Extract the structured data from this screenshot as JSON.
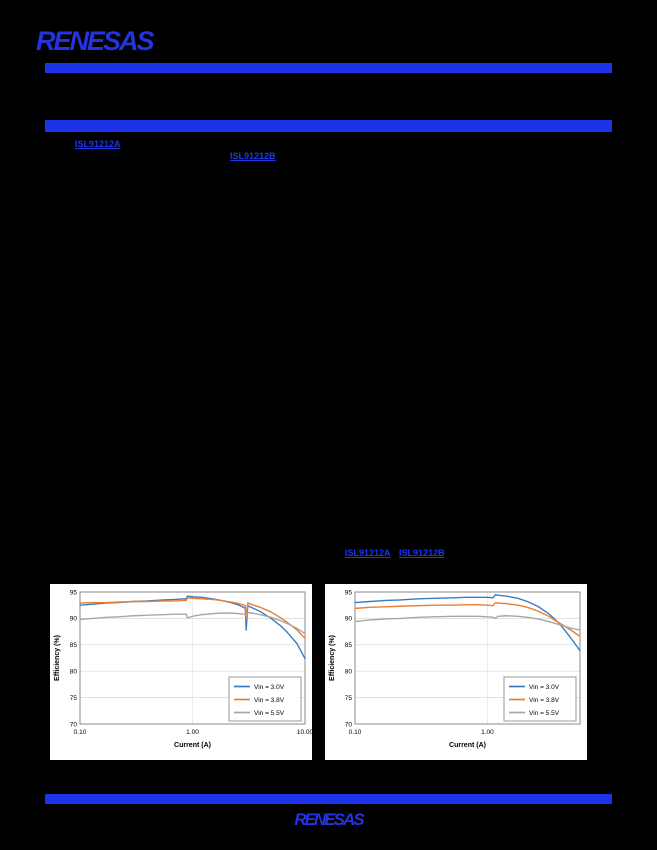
{
  "page": {
    "accent_blue": "#1D33E8",
    "background": "#000000"
  },
  "header": {
    "logo_text": "RENESAS"
  },
  "footer": {
    "logo_text": "RENESAS"
  },
  "links": {
    "top_first": "ISL91212A",
    "top_second": "ISL91212B",
    "mid_first": "ISL91212A",
    "mid_second": "ISL91212B"
  },
  "chart_data": [
    {
      "type": "line",
      "title": "",
      "xlabel": "Current (A)",
      "ylabel": "Efficiency (%)",
      "xscale": "log",
      "xlim": [
        0.1,
        10
      ],
      "ylim": [
        70,
        95
      ],
      "yticks": [
        70,
        75,
        80,
        85,
        90,
        95
      ],
      "xtick_values": [
        0.1,
        1,
        10
      ],
      "xtick_labels": [
        "0.10",
        "1.00",
        "10.00"
      ],
      "grid": true,
      "legend_position": "inside-bottom-right",
      "colors": [
        "#3A7CC4",
        "#ED7D31",
        "#A6A6A6"
      ],
      "x": [
        0.1,
        0.13,
        0.17,
        0.22,
        0.3,
        0.4,
        0.55,
        0.7,
        0.85,
        0.88,
        0.9,
        1.0,
        1.2,
        1.5,
        1.8,
        2.2,
        2.6,
        2.9,
        2.95,
        3.0,
        3.1,
        3.4,
        4.0,
        5.0,
        6.0,
        7.0,
        8.5,
        10.0
      ],
      "series": [
        {
          "name": "Vin = 3.0V",
          "values": [
            92.5,
            92.7,
            92.9,
            93.0,
            93.2,
            93.3,
            93.5,
            93.6,
            93.7,
            93.7,
            94.2,
            94.1,
            94.0,
            93.7,
            93.4,
            93.0,
            92.5,
            92.0,
            91.8,
            87.8,
            92.4,
            92.0,
            91.3,
            90.0,
            88.7,
            87.3,
            85.2,
            82.4
          ]
        },
        {
          "name": "Vin = 3.8V",
          "values": [
            92.9,
            93.0,
            93.0,
            93.1,
            93.2,
            93.2,
            93.3,
            93.3,
            93.4,
            93.4,
            93.9,
            93.8,
            93.7,
            93.6,
            93.4,
            93.1,
            92.8,
            92.5,
            92.4,
            89.9,
            92.9,
            92.6,
            92.1,
            91.2,
            90.2,
            89.2,
            87.8,
            86.2
          ]
        },
        {
          "name": "Vin = 5.5V",
          "values": [
            89.8,
            90.0,
            90.2,
            90.3,
            90.5,
            90.6,
            90.7,
            90.8,
            90.8,
            90.8,
            90.1,
            90.4,
            90.7,
            90.9,
            91.0,
            91.0,
            90.9,
            90.8,
            90.8,
            90.5,
            91.1,
            91.0,
            90.7,
            90.2,
            89.6,
            89.0,
            88.1,
            87.1
          ]
        }
      ]
    },
    {
      "type": "line",
      "title": "",
      "xlabel": "Current (A)",
      "ylabel": "Efficiency (%)",
      "xscale": "log",
      "xlim": [
        0.1,
        5
      ],
      "ylim": [
        70,
        95
      ],
      "yticks": [
        70,
        75,
        80,
        85,
        90,
        95
      ],
      "xtick_values": [
        0.1,
        1
      ],
      "xtick_labels": [
        "0.10",
        "1.00"
      ],
      "grid": true,
      "legend_position": "inside-bottom-right",
      "colors": [
        "#3A7CC4",
        "#ED7D31",
        "#A6A6A6"
      ],
      "x": [
        0.1,
        0.13,
        0.17,
        0.22,
        0.3,
        0.4,
        0.55,
        0.7,
        0.85,
        1.0,
        1.1,
        1.15,
        1.2,
        1.4,
        1.7,
        2.0,
        2.4,
        2.9,
        3.5,
        4.2,
        5.0
      ],
      "series": [
        {
          "name": "Vin = 3.0V",
          "values": [
            93.0,
            93.2,
            93.4,
            93.5,
            93.7,
            93.8,
            93.9,
            94.0,
            94.0,
            94.0,
            93.9,
            94.5,
            94.4,
            94.2,
            93.8,
            93.2,
            92.3,
            90.9,
            89.0,
            86.5,
            83.9
          ]
        },
        {
          "name": "Vin = 3.8V",
          "values": [
            91.9,
            92.1,
            92.2,
            92.3,
            92.4,
            92.5,
            92.5,
            92.6,
            92.6,
            92.5,
            92.4,
            93.0,
            92.9,
            92.8,
            92.5,
            92.1,
            91.4,
            90.4,
            89.1,
            87.9,
            86.6
          ]
        },
        {
          "name": "Vin = 5.5V",
          "values": [
            89.4,
            89.7,
            89.9,
            90.0,
            90.2,
            90.3,
            90.4,
            90.4,
            90.4,
            90.3,
            90.2,
            90.0,
            90.4,
            90.5,
            90.4,
            90.2,
            89.9,
            89.4,
            88.8,
            88.2,
            87.8
          ]
        }
      ]
    }
  ]
}
